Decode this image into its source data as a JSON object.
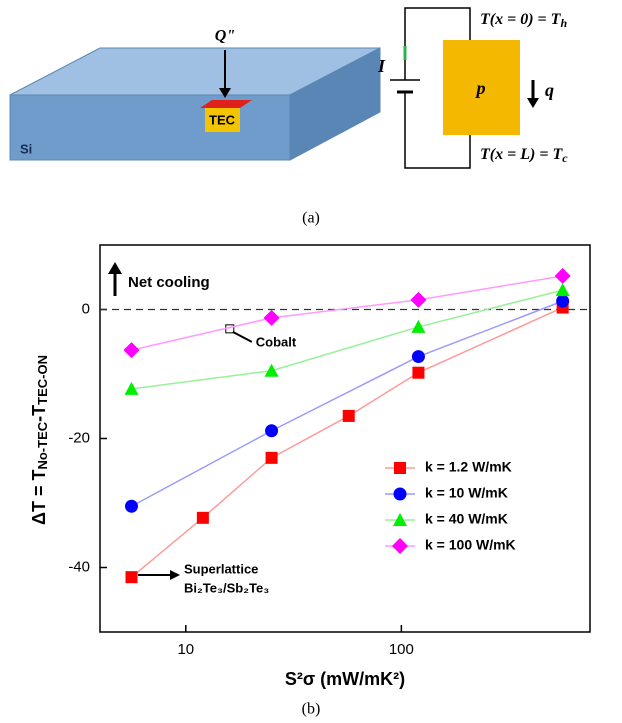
{
  "figure_a": {
    "heat_flux": "Q\"",
    "tec_label": "TEC",
    "substrate": "Si",
    "current": "I",
    "element": "p",
    "heat": "q",
    "hot_side": [
      "T(x = 0) = T",
      "h"
    ],
    "cold_side": [
      "T(x = L) = T",
      "c"
    ],
    "caption": "(a)"
  },
  "chart_data": {
    "type": "line",
    "x_log": true,
    "xlabel": "S²σ (mW/mK²)",
    "ylabel": [
      "ΔT = T",
      "No-TEC",
      "-T",
      "TEC-ON"
    ],
    "xlim": [
      4,
      750
    ],
    "xticks": [
      10,
      100
    ],
    "ylim": [
      -50,
      10
    ],
    "yticks": [
      -40,
      -20,
      0
    ],
    "hline": 0,
    "legend": "center right",
    "series": [
      {
        "name": "k = 1.2 W/mK",
        "color": "#ff0000",
        "line_color": "#ff9a9a",
        "marker": "square",
        "x": [
          5.6,
          12,
          25,
          57,
          120,
          560
        ],
        "values": [
          -41.5,
          -32.3,
          -23,
          -16.5,
          -9.8,
          0.3
        ]
      },
      {
        "name": "k = 10 W/mK",
        "color": "#0000ff",
        "line_color": "#9a9aff",
        "marker": "circle",
        "x": [
          5.6,
          25,
          120,
          560
        ],
        "values": [
          -30.5,
          -18.8,
          -7.3,
          1.3
        ]
      },
      {
        "name": "k = 40 W/mK",
        "color": "#00ee00",
        "line_color": "#9af09a",
        "marker": "triangle",
        "x": [
          5.6,
          25,
          120,
          560
        ],
        "values": [
          -12.3,
          -9.5,
          -2.7,
          3
        ]
      },
      {
        "name": "k = 100 W/mK",
        "color": "#ff00ff",
        "line_color": "#ff9aff",
        "marker": "diamond",
        "x": [
          5.6,
          25,
          120,
          560
        ],
        "values": [
          -6.3,
          -1.3,
          1.5,
          5.2
        ]
      }
    ],
    "annotations": [
      {
        "text": "Net cooling"
      },
      {
        "text": "Cobalt",
        "x": 16,
        "y": -3
      },
      {
        "text": "Superlattice"
      },
      {
        "text": "Bi₂Te₃/Sb₂Te₃"
      }
    ]
  },
  "caption_b": "(b)"
}
